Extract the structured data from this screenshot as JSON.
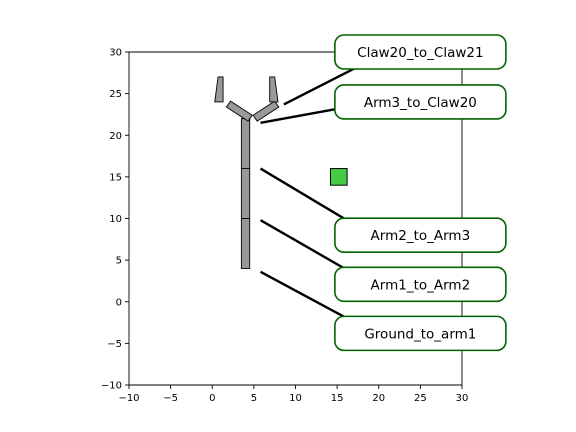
{
  "chart_data": {
    "type": "diagram",
    "xlim": [
      -10,
      30
    ],
    "ylim": [
      -10,
      30
    ],
    "x_ticks": [
      "−10",
      "−5",
      "0",
      "5",
      "10",
      "15",
      "20",
      "25",
      "30"
    ],
    "y_ticks": [
      "−10",
      "−5",
      "0",
      "5",
      "10",
      "15",
      "20",
      "25",
      "30"
    ],
    "grid": false,
    "colors": {
      "segment_fill": "#999999",
      "segment_edge": "#000000",
      "target_fill": "#44cc44",
      "label_border": "#006400",
      "pointer_line": "#000000"
    },
    "arm_segments": [
      {
        "name": "arm1",
        "x0": 3.5,
        "x1": 4.5,
        "y0": 4,
        "y1": 10
      },
      {
        "name": "arm2",
        "x0": 3.5,
        "x1": 4.5,
        "y0": 10,
        "y1": 16
      },
      {
        "name": "arm3",
        "x0": 3.5,
        "x1": 4.5,
        "y0": 16,
        "y1": 22
      }
    ],
    "claw_parts": [
      {
        "name": "claw20-base",
        "points": [
          [
            2.2,
            24.1
          ],
          [
            4.8,
            22.4
          ],
          [
            4.3,
            21.7
          ],
          [
            1.7,
            23.4
          ]
        ]
      },
      {
        "name": "claw20-tip",
        "points": [
          [
            0.7,
            27.0
          ],
          [
            1.3,
            27.0
          ],
          [
            1.3,
            24.0
          ],
          [
            0.3,
            24.0
          ]
        ]
      },
      {
        "name": "claw21-base",
        "points": [
          [
            7.5,
            24.1
          ],
          [
            4.9,
            22.4
          ],
          [
            5.4,
            21.7
          ],
          [
            8.0,
            23.4
          ]
        ]
      },
      {
        "name": "claw21-tip",
        "points": [
          [
            6.9,
            27.0
          ],
          [
            7.5,
            27.0
          ],
          [
            7.9,
            24.0
          ],
          [
            6.9,
            24.0
          ]
        ]
      }
    ],
    "target": {
      "x": 15.2,
      "y": 15.0,
      "size": 2.0
    },
    "joint_labels": [
      {
        "text": "Claw20_to_Claw21",
        "line_from": [
          8.6,
          23.7
        ],
        "line_to": [
          19.0,
          29.0
        ],
        "box_center": [
          25.0,
          30.0
        ]
      },
      {
        "text": "Arm3_to_Claw20",
        "line_from": [
          5.8,
          21.5
        ],
        "line_to": [
          19.0,
          23.9
        ],
        "box_center": [
          25.0,
          24.0
        ]
      },
      {
        "text": "Arm2_to_Arm3",
        "line_from": [
          5.8,
          16.0
        ],
        "line_to": [
          19.0,
          8.1
        ],
        "box_center": [
          25.0,
          8.0
        ]
      },
      {
        "text": "Arm1_to_Arm2",
        "line_from": [
          5.8,
          9.8
        ],
        "line_to": [
          19.0,
          2.2
        ],
        "box_center": [
          25.0,
          2.1
        ]
      },
      {
        "text": "Ground_to_arm1",
        "line_from": [
          5.8,
          3.6
        ],
        "line_to": [
          19.0,
          -3.5
        ],
        "box_center": [
          25.0,
          -3.8
        ]
      }
    ]
  }
}
